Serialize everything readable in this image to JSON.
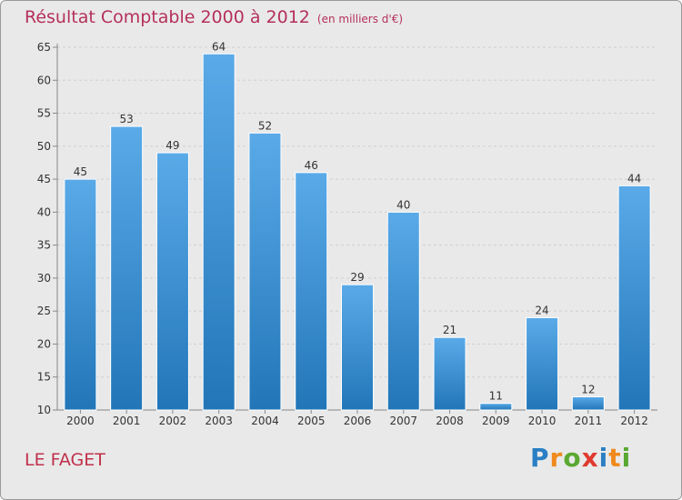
{
  "title": "Résultat Comptable 2000 à 2012",
  "subtitle": "(en milliers d'€)",
  "commune": "LE FAGET",
  "brand": {
    "text": "Proxiti",
    "letters": [
      {
        "ch": "P",
        "color": "#2a7fc4"
      },
      {
        "ch": "r",
        "color": "#f08a1c"
      },
      {
        "ch": "o",
        "color": "#5aa832"
      },
      {
        "ch": "x",
        "color": "#e03a2f"
      },
      {
        "ch": "i",
        "color": "#2a7fc4"
      },
      {
        "ch": "t",
        "color": "#f08a1c"
      },
      {
        "ch": "i",
        "color": "#5aa832"
      }
    ]
  },
  "colors": {
    "title": "#b5305a",
    "bar_top": "#5aaae8",
    "bar_bottom": "#2276b8",
    "grid": "#cfcfcf",
    "axis_text": "#333333",
    "background": "#e9e9e9"
  },
  "chart_data": {
    "type": "bar",
    "title": "Résultat Comptable 2000 à 2012",
    "subtitle": "(en milliers d'€)",
    "xlabel": "",
    "ylabel": "",
    "categories": [
      "2000",
      "2001",
      "2002",
      "2003",
      "2004",
      "2005",
      "2006",
      "2007",
      "2008",
      "2009",
      "2010",
      "2011",
      "2012"
    ],
    "values": [
      45,
      53,
      49,
      64,
      52,
      46,
      29,
      40,
      21,
      11,
      24,
      12,
      44
    ],
    "ylim": [
      10,
      65
    ],
    "yticks": [
      10,
      15,
      20,
      25,
      30,
      35,
      40,
      45,
      50,
      55,
      60,
      65
    ],
    "grid": true,
    "data_labels": true
  }
}
